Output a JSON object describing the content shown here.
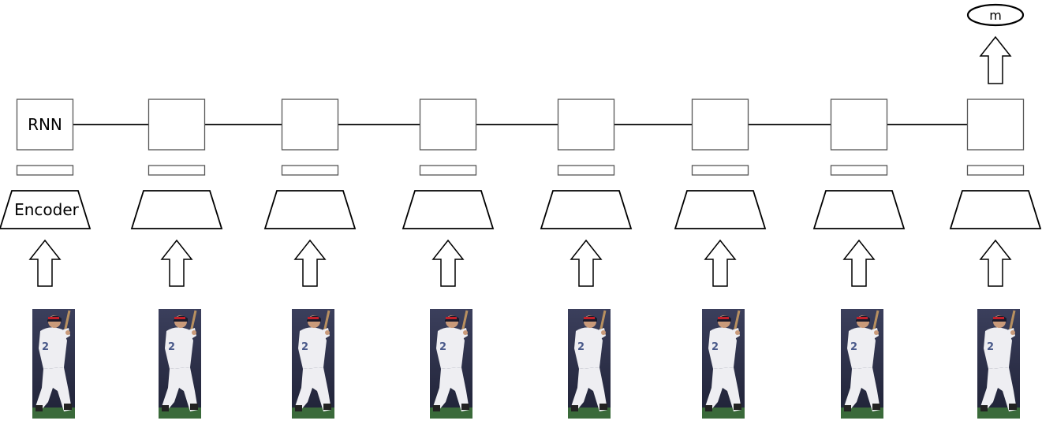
{
  "labels": {
    "rnn": "RNN",
    "encoder": "Encoder",
    "output": "m"
  },
  "frames": [
    {
      "index": 1
    },
    {
      "index": 2
    },
    {
      "index": 3
    },
    {
      "index": 4
    },
    {
      "index": 5
    },
    {
      "index": 6
    },
    {
      "index": 7
    },
    {
      "index": 8
    }
  ],
  "colors": {
    "stroke": "#000000",
    "box_stroke": "#555555",
    "background": "#ffffff",
    "photo_backdrop": "#2b2f4a",
    "uniform": "#eeeef2",
    "cap": "#1a1a2a",
    "helmet_stripe": "#c0202a",
    "skin": "#c99a7a",
    "field": "#3a6a3a"
  }
}
